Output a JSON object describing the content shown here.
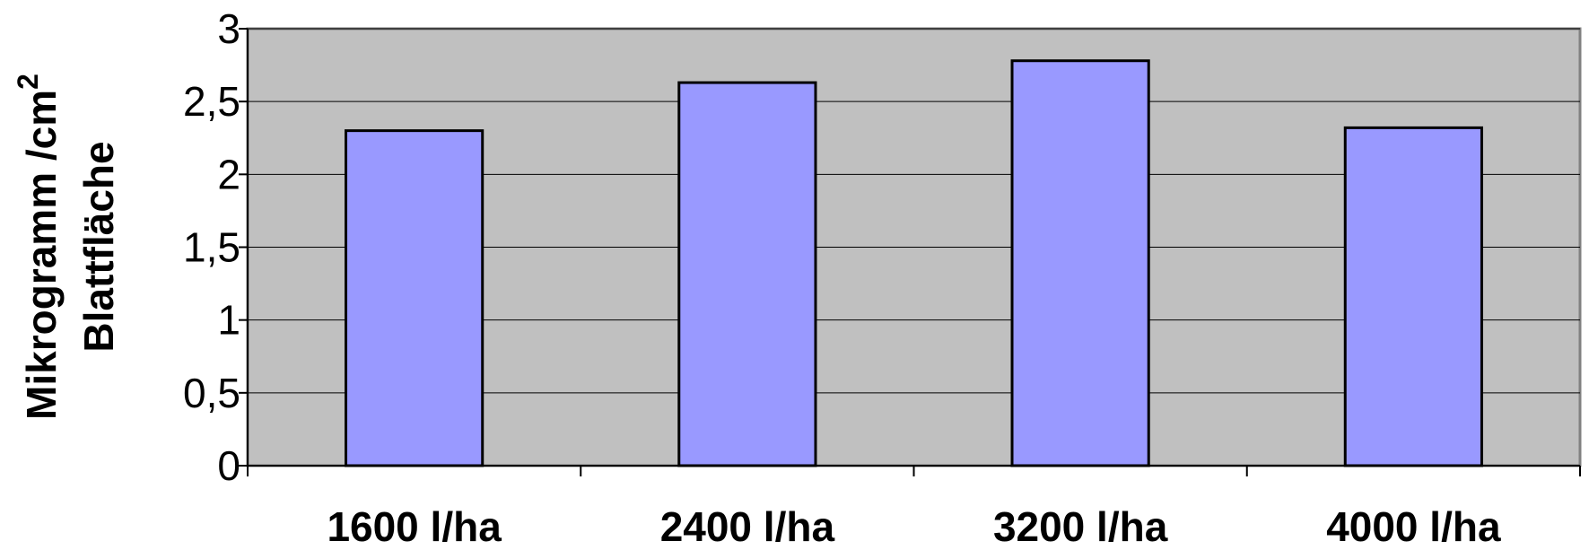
{
  "chart_data": {
    "type": "bar",
    "categories": [
      "1600 l/ha",
      "2400 l/ha",
      "3200 l/ha",
      "4000 l/ha"
    ],
    "values": [
      2.3,
      2.63,
      2.78,
      2.32
    ],
    "ylim": [
      0,
      3
    ],
    "yticks": [
      "0",
      "0,5",
      "1",
      "1,5",
      "2",
      "2,5",
      "3"
    ],
    "ytick_values": [
      0,
      0.5,
      1,
      1.5,
      2,
      2.5,
      3
    ],
    "ylabel_line1": "Mikrogramm /cm",
    "ylabel_sup": "2",
    "ylabel_line2": "Blattfläche",
    "xlabel": "",
    "title": "",
    "grid": true,
    "colors": {
      "plot_background": "#c0c0c0",
      "bar_fill": "#9999ff",
      "bar_stroke": "#000000",
      "gridline": "#000000",
      "frame": "#808080"
    }
  }
}
